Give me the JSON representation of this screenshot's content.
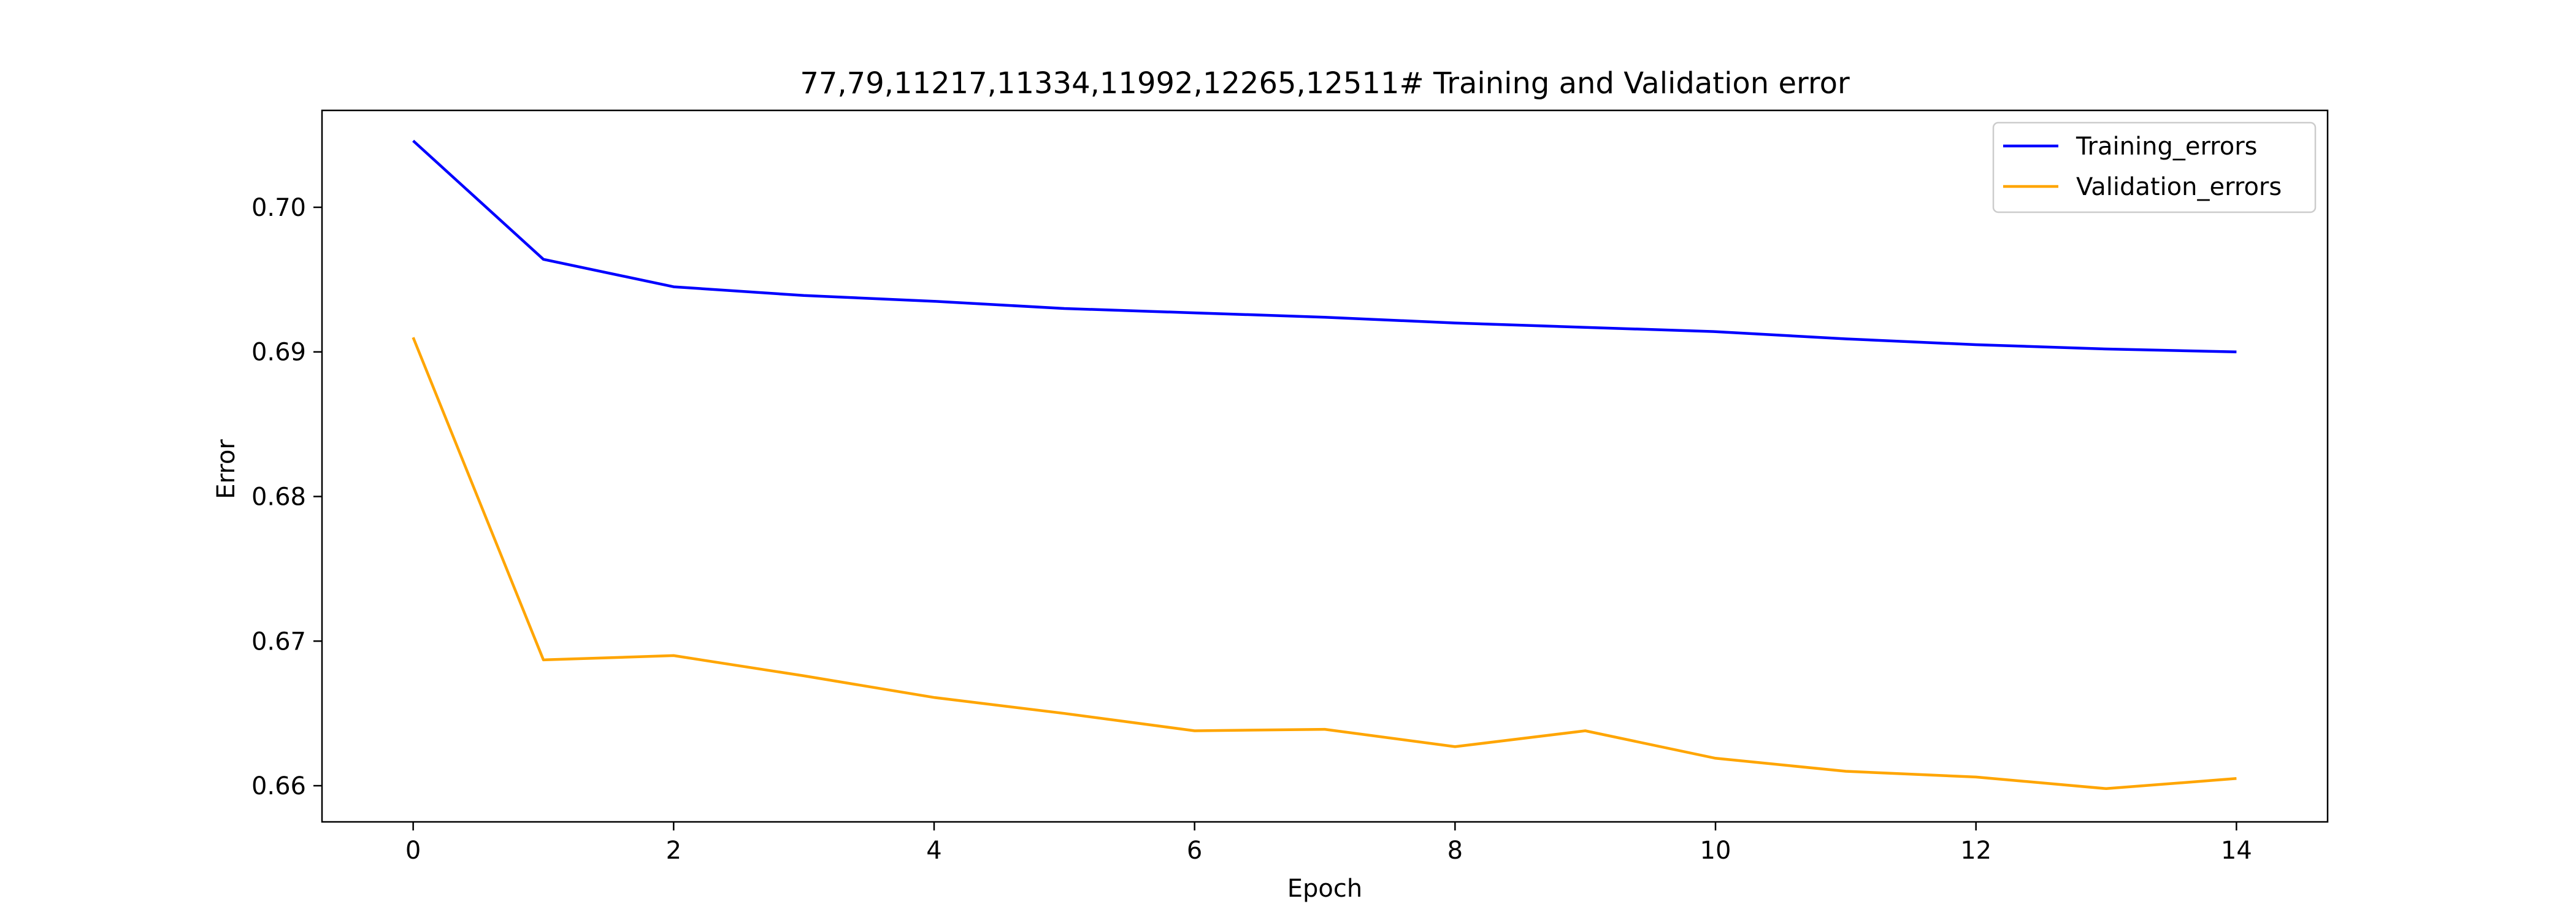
{
  "chart_data": {
    "type": "line",
    "title": "77,79,11217,11334,11992,12265,12511# Training and Validation error",
    "xlabel": "Epoch",
    "ylabel": "Error",
    "xlim": [
      -0.7,
      14.7
    ],
    "ylim": [
      0.6575,
      0.7067
    ],
    "xticks": [
      0,
      2,
      4,
      6,
      8,
      10,
      12,
      14
    ],
    "xtick_labels": [
      "0",
      "2",
      "4",
      "6",
      "8",
      "10",
      "12",
      "14"
    ],
    "yticks": [
      0.66,
      0.67,
      0.68,
      0.69,
      0.7
    ],
    "ytick_labels": [
      "0.66",
      "0.67",
      "0.68",
      "0.69",
      "0.70"
    ],
    "grid": false,
    "legend_position": "top-right",
    "x": [
      0,
      1,
      2,
      3,
      4,
      5,
      6,
      7,
      8,
      9,
      10,
      11,
      12,
      13,
      14
    ],
    "series": [
      {
        "name": "Training_errors",
        "color": "#0000ff",
        "values": [
          0.7046,
          0.6964,
          0.6945,
          0.6939,
          0.6935,
          0.693,
          0.6927,
          0.6924,
          0.692,
          0.6917,
          0.6914,
          0.6909,
          0.6905,
          0.6902,
          0.69
        ]
      },
      {
        "name": "Validation_errors",
        "color": "#ffa500",
        "values": [
          0.691,
          0.6687,
          0.669,
          0.6676,
          0.6661,
          0.665,
          0.6638,
          0.6639,
          0.6627,
          0.6638,
          0.6619,
          0.661,
          0.6606,
          0.6598,
          0.6605
        ]
      }
    ]
  }
}
